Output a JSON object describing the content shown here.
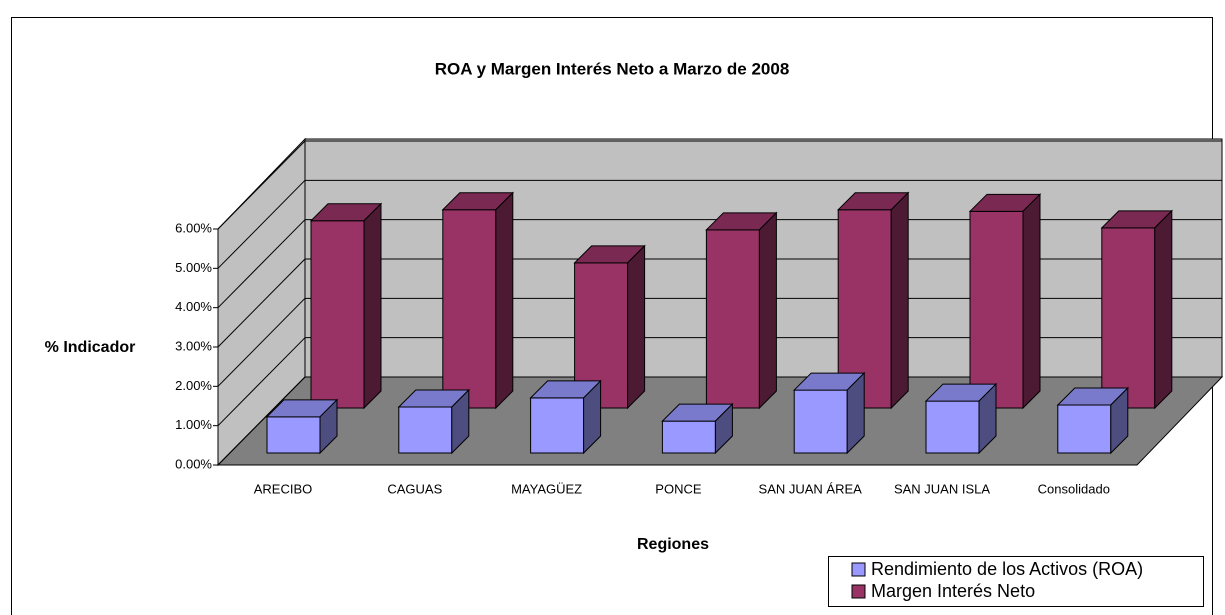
{
  "chart_data": {
    "type": "bar3d",
    "title": "ROA y Margen Interés Neto a Marzo de 2008",
    "x_label": "Regiones",
    "y_label": "% Indicador",
    "categories": [
      "ARECIBO",
      "CAGUAS",
      "MAYAGÜEZ",
      "PONCE",
      "SAN JUAN ÁREA",
      "SAN JUAN ISLA",
      "Consolidado"
    ],
    "series": [
      {
        "name": "Rendimiento de los Activos (ROA)",
        "color": "#9999ff",
        "values": [
          0.92,
          1.17,
          1.4,
          0.81,
          1.6,
          1.32,
          1.22
        ]
      },
      {
        "name": "Margen Interés Neto",
        "color": "#993366",
        "values": [
          4.76,
          5.04,
          3.69,
          4.53,
          5.04,
          5.0,
          4.58
        ]
      }
    ],
    "ylim": [
      0,
      6
    ],
    "yticks": [
      {
        "value": 0,
        "label": "0.00%"
      },
      {
        "value": 1,
        "label": "1.00%"
      },
      {
        "value": 2,
        "label": "2.00%"
      },
      {
        "value": 3,
        "label": "3.00%"
      },
      {
        "value": 4,
        "label": "4.00%"
      },
      {
        "value": 5,
        "label": "5.00%"
      },
      {
        "value": 6,
        "label": "6.00%"
      }
    ],
    "grid": true,
    "legend": "bottom-right"
  }
}
